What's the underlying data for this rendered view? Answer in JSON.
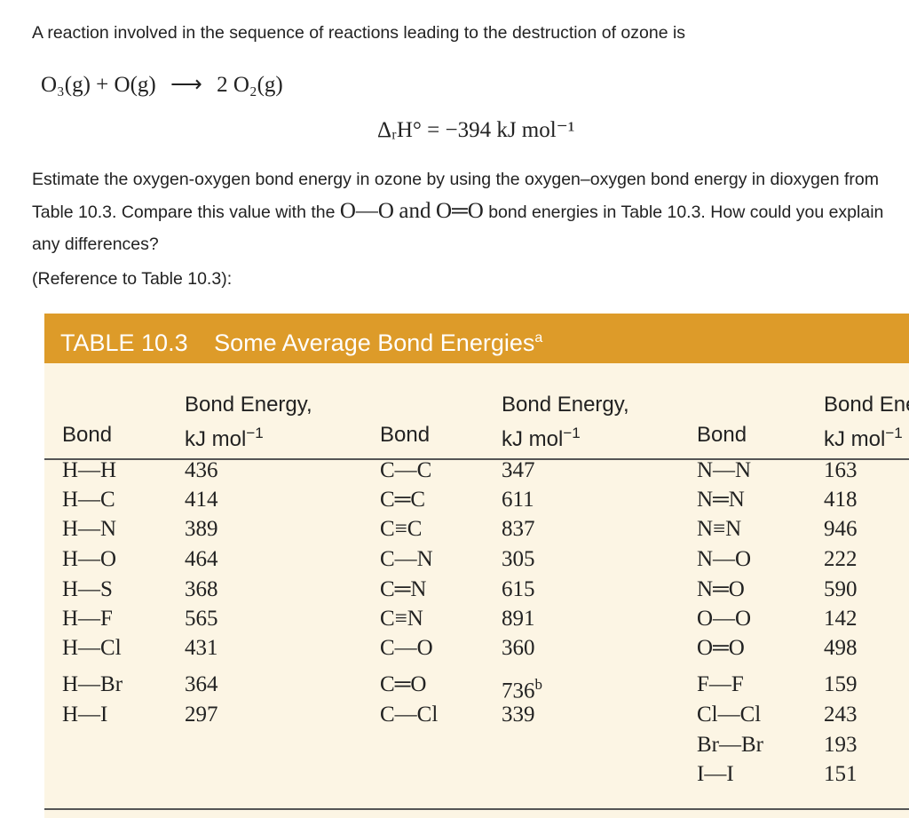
{
  "question": {
    "intro": "A reaction involved in the sequence of reactions leading to the destruction of ozone is",
    "equation": {
      "lhs": "O₃(g) + O(g)",
      "arrow": "⟶",
      "rhs": "2 O₂(g)"
    },
    "enthalpy": "ΔᵣH° = −394 kJ mol⁻¹",
    "text_before": "Estimate the oxygen-oxygen bond energy in ozone by using the oxygen–oxygen bond energy in dioxygen from Table 10.3. Compare this value with the",
    "bond_single": "O—O",
    "joiner": "and",
    "bond_double": "O═O",
    "text_after": "bond energies in Table 10.3. How could you explain any differences?",
    "reference": "(Reference to Table 10.3):"
  },
  "table": {
    "label": "TABLE 10.3",
    "title": "Some Average Bond Energies",
    "title_note": "a",
    "groups": [
      {
        "header": {
          "bond": "Bond",
          "energy": "Bond Energy,",
          "unit": "kJ mol",
          "unit_exp": "−1"
        },
        "rows": [
          {
            "bond": "H—H",
            "energy": 436
          },
          {
            "bond": "H—C",
            "energy": 414
          },
          {
            "bond": "H—N",
            "energy": 389
          },
          {
            "bond": "H—O",
            "energy": 464
          },
          {
            "bond": "H—S",
            "energy": 368
          },
          {
            "bond": "H—F",
            "energy": 565
          },
          {
            "bond": "H—Cl",
            "energy": 431
          },
          {
            "bond": "H—Br",
            "energy": 364
          },
          {
            "bond": "H—I",
            "energy": 297
          }
        ]
      },
      {
        "header": {
          "bond": "Bond",
          "energy": "Bond Energy,",
          "unit": "kJ mol",
          "unit_exp": "−1"
        },
        "rows": [
          {
            "bond": "C—C",
            "energy": 347
          },
          {
            "bond": "C═C",
            "energy": 611
          },
          {
            "bond": "C≡C",
            "energy": 837
          },
          {
            "bond": "C—N",
            "energy": 305
          },
          {
            "bond": "C═N",
            "energy": 615
          },
          {
            "bond": "C≡N",
            "energy": 891
          },
          {
            "bond": "C—O",
            "energy": 360
          },
          {
            "bond": "C═O",
            "energy": 736,
            "note": "b"
          },
          {
            "bond": "C—Cl",
            "energy": 339
          }
        ]
      },
      {
        "header": {
          "bond": "Bond",
          "energy": "Bond Energy,",
          "unit": "kJ mol",
          "unit_exp": "−1"
        },
        "rows": [
          {
            "bond": "N—N",
            "energy": 163
          },
          {
            "bond": "N═N",
            "energy": 418
          },
          {
            "bond": "N≡N",
            "energy": 946
          },
          {
            "bond": "N—O",
            "energy": 222
          },
          {
            "bond": "N═O",
            "energy": 590
          },
          {
            "bond": "O—O",
            "energy": 142
          },
          {
            "bond": "O═O",
            "energy": 498
          },
          {
            "bond": "F—F",
            "energy": 159
          },
          {
            "bond": "Cl—Cl",
            "energy": 243
          },
          {
            "bond": "Br—Br",
            "energy": 193
          },
          {
            "bond": "I—I",
            "energy": 151
          }
        ]
      }
    ]
  }
}
